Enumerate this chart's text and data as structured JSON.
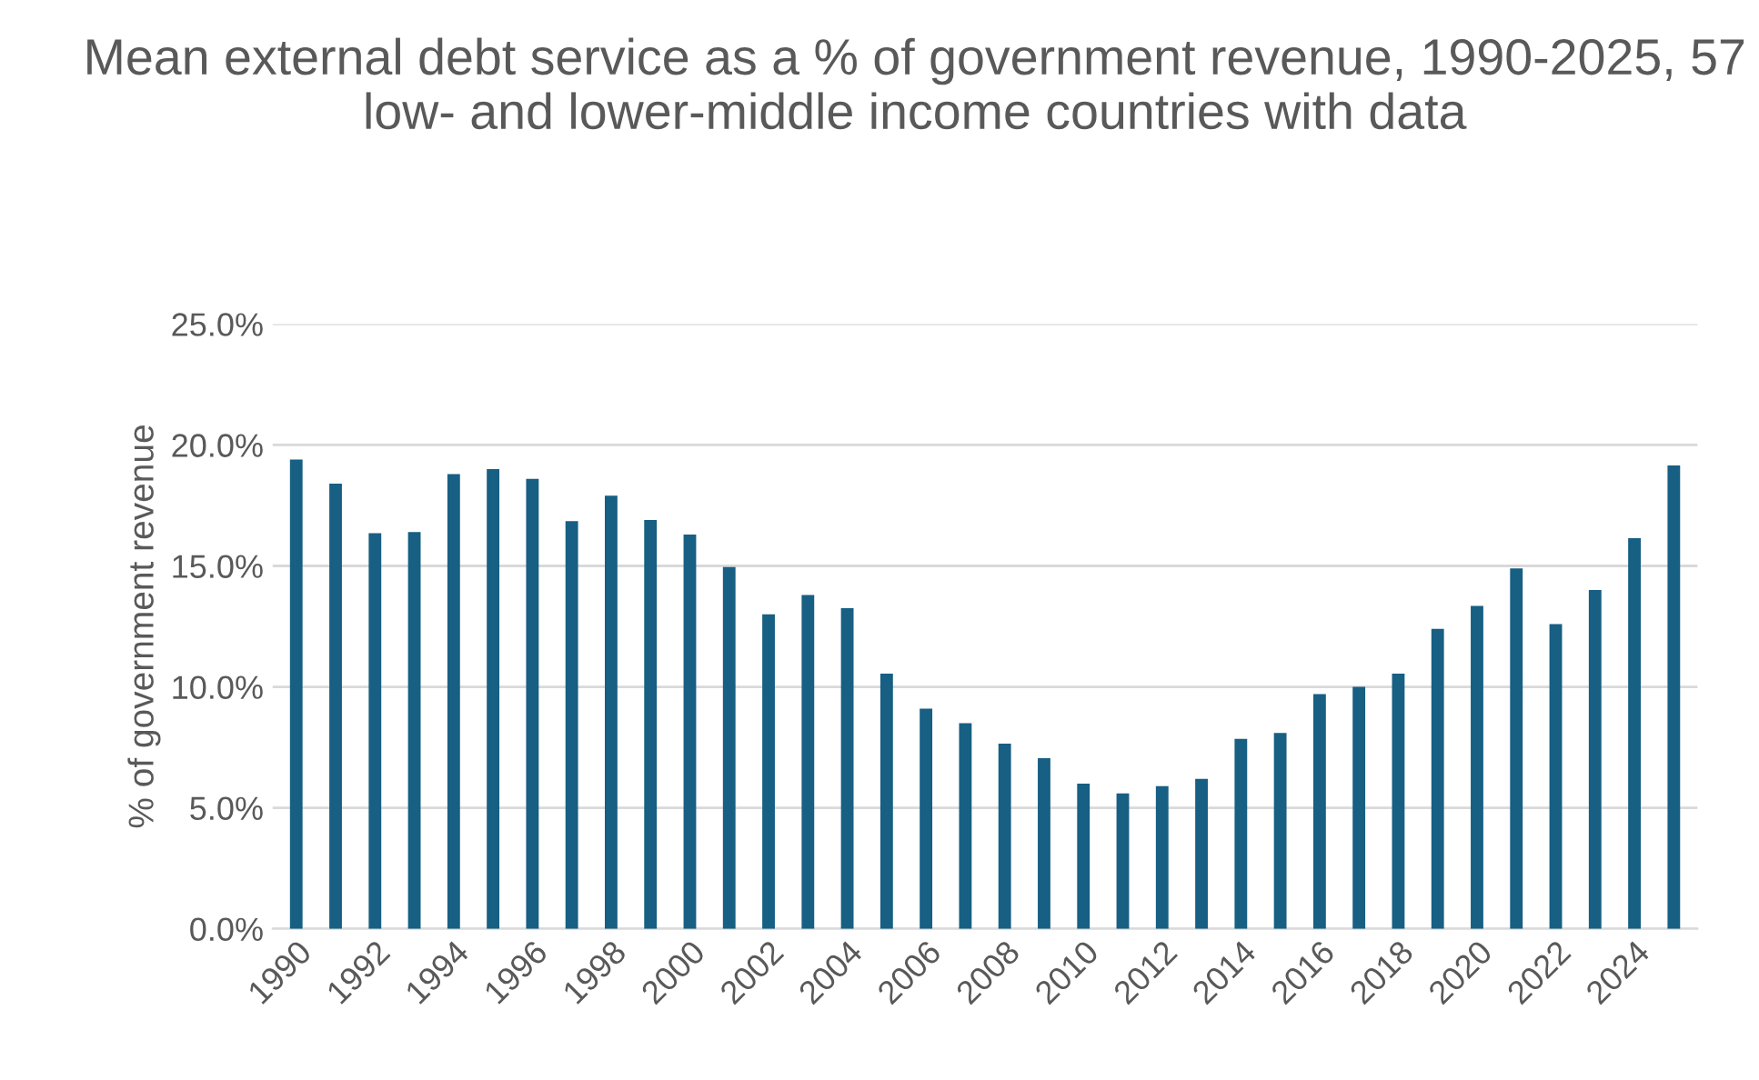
{
  "chart_data": {
    "type": "bar",
    "title": "Mean external debt service as a % of government revenue, 1990-2025, 57 low- and lower-middle income countries with data",
    "ylabel": "% of government revenue",
    "categories": [
      "1990",
      null,
      "1992",
      null,
      "1994",
      null,
      "1996",
      null,
      "1998",
      null,
      "2000",
      null,
      "2002",
      null,
      "2004",
      null,
      "2006",
      null,
      "2008",
      null,
      "2010",
      null,
      "2012",
      null,
      "2014",
      null,
      "2016",
      null,
      "2018",
      null,
      "2020",
      null,
      "2022",
      null,
      "2024",
      null
    ],
    "values": [
      19.4,
      18.4,
      16.35,
      16.4,
      18.8,
      19.0,
      18.6,
      16.85,
      17.9,
      16.9,
      16.3,
      14.95,
      13.0,
      13.8,
      13.25,
      10.55,
      9.1,
      8.5,
      7.65,
      7.05,
      6.0,
      5.6,
      5.9,
      6.2,
      7.85,
      8.1,
      9.7,
      10.0,
      10.55,
      12.4,
      13.35,
      14.9,
      12.6,
      14.0,
      16.15,
      19.15
    ],
    "color": "#175f83",
    "ylim": [
      0,
      25
    ],
    "yticks": [
      {
        "value": 0,
        "label": "0.0%"
      },
      {
        "value": 5,
        "label": "5.0%"
      },
      {
        "value": 10,
        "label": "10.0%"
      },
      {
        "value": 15,
        "label": "15.0%"
      },
      {
        "value": 20,
        "label": "20.0%"
      },
      {
        "value": 25,
        "label": "25.0%"
      }
    ],
    "grid": "y",
    "legend": false
  }
}
